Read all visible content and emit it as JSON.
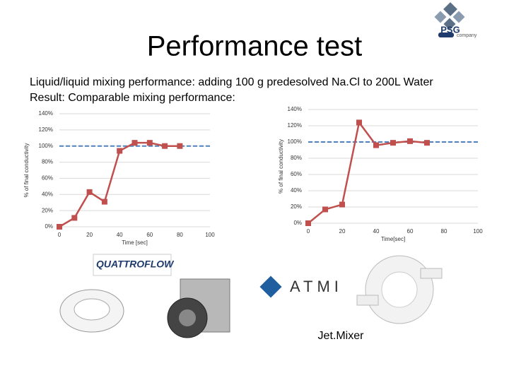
{
  "slide": {
    "title": "Performance test",
    "lines": [
      "Liquid/liquid mixing performance: adding 100 g predesolved Na.Cl to 200L Water",
      "Result: Comparable mixing performance:"
    ],
    "logo": "PSG",
    "logo_sub": "company",
    "product_1": "QUATTROFLOW",
    "product_2": "ATMI",
    "product_3": "Jet.Mixer"
  },
  "chart_data": [
    {
      "type": "line",
      "x_label": "Time [sec]",
      "y_label": "% of final conductivity",
      "x": [
        0,
        10,
        20,
        30,
        40,
        50,
        60,
        70,
        80
      ],
      "series": [
        {
          "color": "#c0504d",
          "values": [
            0,
            11,
            43,
            31,
            94,
            104,
            104,
            100,
            100
          ]
        }
      ],
      "xlim": [
        0,
        100
      ],
      "xticks": [
        0,
        20,
        40,
        60,
        80,
        100
      ],
      "ylim": [
        0,
        140
      ],
      "yticks": [
        {
          "value": 0,
          "label": "0%"
        },
        {
          "value": 20,
          "label": "20%"
        },
        {
          "value": 40,
          "label": "40%"
        },
        {
          "value": 60,
          "label": "60%"
        },
        {
          "value": 80,
          "label": "80%"
        },
        {
          "value": 100,
          "label": "100%"
        },
        {
          "value": 120,
          "label": "120%"
        },
        {
          "value": 140,
          "label": "140%"
        }
      ],
      "grid": true,
      "reference": 100,
      "reference_color": "#4f81bd"
    },
    {
      "type": "line",
      "x_label": "Time[sec]",
      "y_label": "% of final conductivity",
      "x": [
        0,
        10,
        20,
        30,
        40,
        50,
        60,
        70
      ],
      "series": [
        {
          "color": "#c0504d",
          "values": [
            0,
            17,
            23,
            124,
            96,
            99,
            101,
            99
          ]
        }
      ],
      "xlim": [
        0,
        100
      ],
      "xticks": [
        0,
        20,
        40,
        60,
        80,
        100
      ],
      "ylim": [
        0,
        140
      ],
      "yticks": [
        {
          "value": 0,
          "label": "0%"
        },
        {
          "value": 20,
          "label": "20%"
        },
        {
          "value": 40,
          "label": "40%"
        },
        {
          "value": 60,
          "label": "60%"
        },
        {
          "value": 80,
          "label": "80%"
        },
        {
          "value": 100,
          "label": "100%"
        },
        {
          "value": 120,
          "label": "120%"
        },
        {
          "value": 140,
          "label": "140%"
        }
      ],
      "grid": true,
      "reference": 100,
      "reference_color": "#4f81bd"
    }
  ]
}
